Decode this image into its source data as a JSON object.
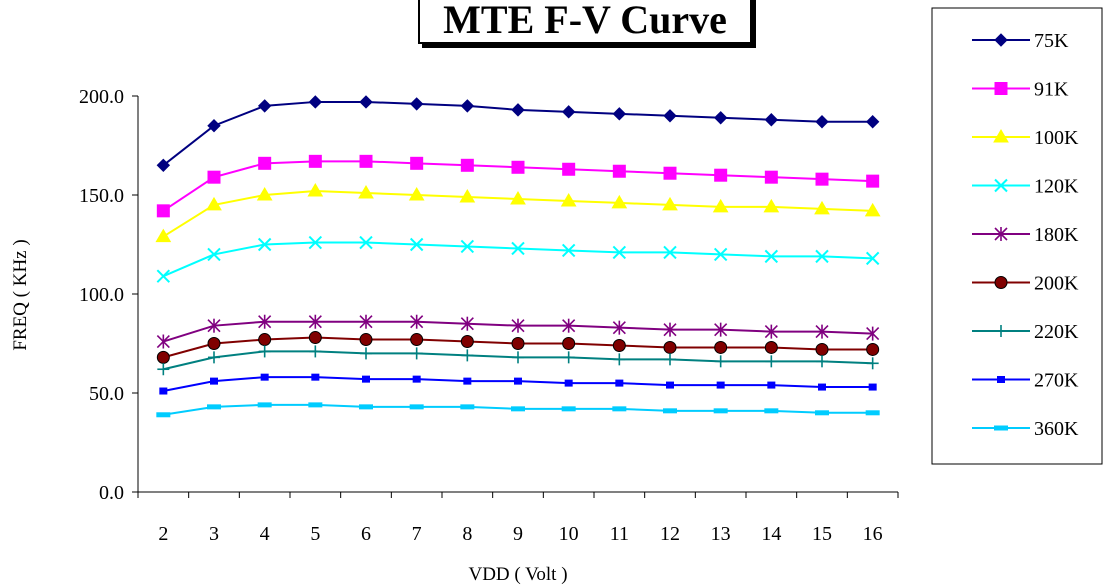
{
  "chart_data": {
    "type": "line",
    "title": "MTE  F-V Curve",
    "xlabel": "VDD ( Volt )",
    "ylabel": "FREQ ( KHz )",
    "x": [
      2,
      3,
      4,
      5,
      6,
      7,
      8,
      9,
      10,
      11,
      12,
      13,
      14,
      15,
      16
    ],
    "ylim": [
      0,
      200
    ],
    "yticks": [
      "0.0",
      "50.0",
      "100.0",
      "150.0",
      "200.0"
    ],
    "grid": false,
    "legend_position": "right",
    "series": [
      {
        "name": "75K",
        "color": "#000080",
        "marker": "diamond",
        "values": [
          165,
          185,
          195,
          197,
          197,
          196,
          195,
          193,
          192,
          191,
          190,
          189,
          188,
          187,
          187
        ]
      },
      {
        "name": "91K",
        "color": "#FF00FF",
        "marker": "square",
        "values": [
          142,
          159,
          166,
          167,
          167,
          166,
          165,
          164,
          163,
          162,
          161,
          160,
          159,
          158,
          157
        ]
      },
      {
        "name": "100K",
        "color": "#FFFF00",
        "marker": "triangle",
        "values": [
          129,
          145,
          150,
          152,
          151,
          150,
          149,
          148,
          147,
          146,
          145,
          144,
          144,
          143,
          142
        ]
      },
      {
        "name": "120K",
        "color": "#00FFFF",
        "marker": "x",
        "values": [
          109,
          120,
          125,
          126,
          126,
          125,
          124,
          123,
          122,
          121,
          121,
          120,
          119,
          119,
          118
        ]
      },
      {
        "name": "180K",
        "color": "#800080",
        "marker": "asterisk",
        "values": [
          76,
          84,
          86,
          86,
          86,
          86,
          85,
          84,
          84,
          83,
          82,
          82,
          81,
          81,
          80
        ]
      },
      {
        "name": "200K",
        "color": "#800000",
        "marker": "circle",
        "values": [
          68,
          75,
          77,
          78,
          77,
          77,
          76,
          75,
          75,
          74,
          73,
          73,
          73,
          72,
          72
        ]
      },
      {
        "name": "220K",
        "color": "#008080",
        "marker": "plus",
        "values": [
          62,
          68,
          71,
          71,
          70,
          70,
          69,
          68,
          68,
          67,
          67,
          66,
          66,
          66,
          65
        ]
      },
      {
        "name": "270K",
        "color": "#0000FF",
        "marker": "smallsquare",
        "values": [
          51,
          56,
          58,
          58,
          57,
          57,
          56,
          56,
          55,
          55,
          54,
          54,
          54,
          53,
          53
        ]
      },
      {
        "name": "360K",
        "color": "#00CCFF",
        "marker": "dash",
        "values": [
          39,
          43,
          44,
          44,
          43,
          43,
          43,
          42,
          42,
          42,
          41,
          41,
          41,
          40,
          40
        ]
      }
    ]
  }
}
